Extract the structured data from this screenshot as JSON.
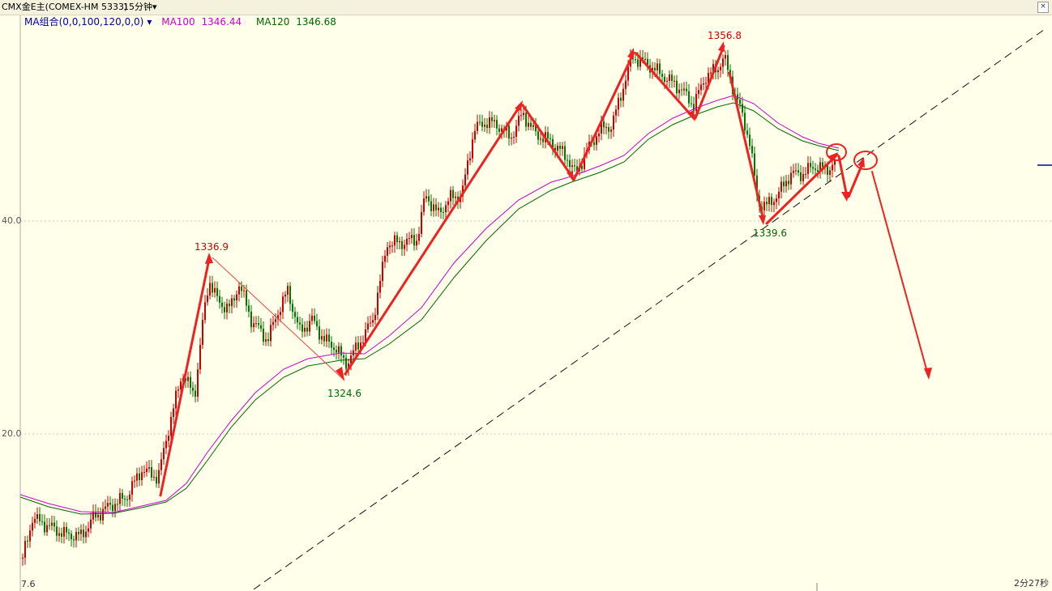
{
  "header": {
    "symbol": "CMX金E主(COMEX-HM 5333)",
    "period": "15分钟",
    "period_arrow": "▾",
    "close_glyph": "×"
  },
  "ma_legend": {
    "combo": "MA组合(0,0,100,120,0,0)",
    "combo_arrow": "▾",
    "ma100_label": "MA100",
    "ma100_value": "1346.44",
    "ma120_label": "MA120",
    "ma120_value": "1346.68"
  },
  "y_axis": {
    "label_upper": "40.0",
    "label_lower": "20.0",
    "bottom_left": "7.6"
  },
  "countdown": "2分27秒",
  "colors": {
    "background": "#FFFFEA",
    "ma100": "#CC00CC",
    "ma120": "#006600",
    "up_candle": "#CC0000",
    "down_candle": "#007700",
    "arrow": "#EE2222",
    "combo_text": "#000099"
  },
  "chart_data": {
    "type": "candlestick",
    "timeframe": "15分钟",
    "y_gridlines": [
      20.0,
      40.0
    ],
    "series": [
      {
        "name": "MA100",
        "last": 1346.44
      },
      {
        "name": "MA120",
        "last": 1346.68
      }
    ],
    "annotations": {
      "highs": [
        "1336.9",
        "1356.8"
      ],
      "lows": [
        "1324.6",
        "1339.6"
      ]
    }
  }
}
